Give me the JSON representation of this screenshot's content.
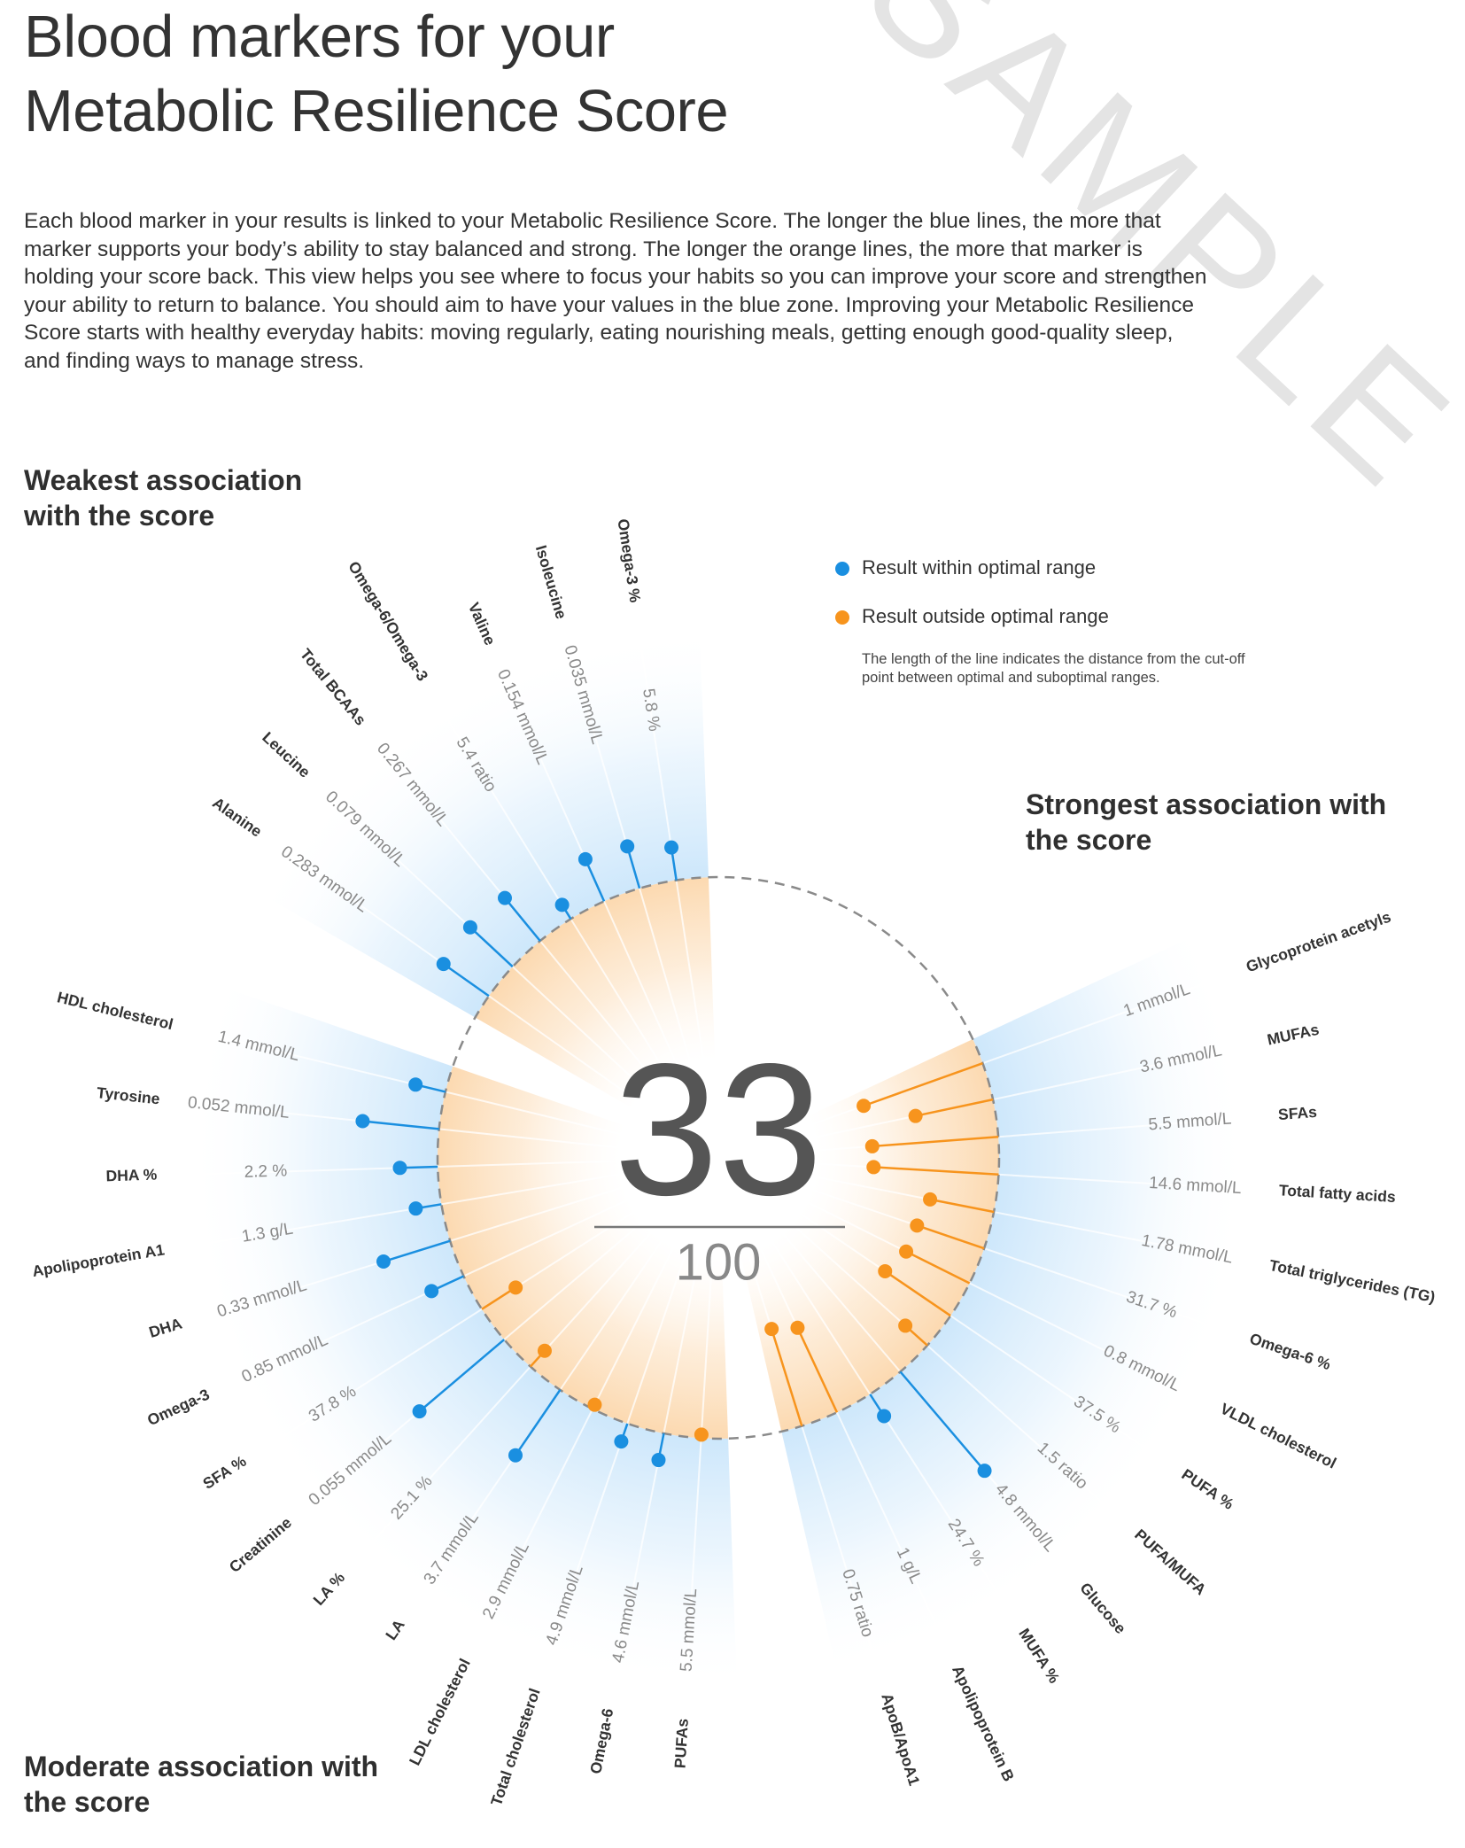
{
  "title": [
    "Blood markers for your",
    "Metabolic Resilience Score"
  ],
  "intro": "Each blood marker in your results is linked to your Metabolic Resilience Score. The longer the blue lines, the more that marker supports your body’s ability to stay balanced and strong. The longer the orange lines, the more that marker is holding your score back. This view helps you see where to focus your habits so you can improve your score and strengthen your ability to return to balance. You should aim to have your values in the blue zone. Improving your Metabolic Resilience Score starts with healthy everyday habits: moving regularly, eating nourishing meals, getting enough  good-quality sleep, and finding ways to manage stress.",
  "watermark": "SAMPLE",
  "chart_data": {
    "type": "radial-lollipop",
    "score": 33,
    "score_max": 100,
    "series": [
      {
        "name": "Result within optimal range",
        "color": "#1a8fe0"
      },
      {
        "name": "Result outside optimal range",
        "color": "#f7941d"
      }
    ],
    "legend_note": "The length of the line indicates the distance from the cut-off point between optimal and suboptimal ranges.",
    "groups": [
      {
        "title": "Weakest association with the score",
        "markers": [
          {
            "name": "Omega-3 %",
            "value": "5.8 %",
            "distance": 28
          },
          {
            "name": "Isoleucine",
            "value": "0.035 mmol/L",
            "distance": 37
          },
          {
            "name": "Valine",
            "value": "0.154 mmol/L",
            "distance": 39
          },
          {
            "name": "Omega-6/Omega-3",
            "value": "5.4 ratio",
            "distance": 14
          },
          {
            "name": "Total BCAAs",
            "value": "0.267 mmol/L",
            "distance": 47
          },
          {
            "name": "Leucine",
            "value": "0.079 mmol/L",
            "distance": 49
          },
          {
            "name": "Alanine",
            "value": "0.283 mmol/L",
            "distance": 47
          }
        ]
      },
      {
        "title": "Moderate association with the score",
        "markers": [
          {
            "name": "HDL cholesterol",
            "value": "1.4 mmol/L",
            "distance": 26
          },
          {
            "name": "Tyrosine",
            "value": "0.052 mmol/L",
            "distance": 65
          },
          {
            "name": "DHA %",
            "value": "2.2 %",
            "distance": 32
          },
          {
            "name": "Apolipoprotein A1",
            "value": "1.3 g/L",
            "distance": 22
          },
          {
            "name": "DHA",
            "value": "0.33 mmol/L",
            "distance": 59
          },
          {
            "name": "Omega-3",
            "value": "0.85 mmol/L",
            "distance": 30
          },
          {
            "name": "SFA %",
            "value": "37.8 %",
            "distance": -34
          },
          {
            "name": "Creatinine",
            "value": "0.055 mmol/L",
            "distance": 94
          },
          {
            "name": "LA %",
            "value": "25.1 %",
            "distance": -18
          },
          {
            "name": "LA",
            "value": "3.7 mmol/L",
            "distance": 67
          },
          {
            "name": "LDL cholesterol",
            "value": "2.9 mmol/L",
            "distance": -4
          },
          {
            "name": "Total cholesterol",
            "value": "4.9 mmol/L",
            "distance": 16
          },
          {
            "name": "Omega-6",
            "value": "4.6 mmol/L",
            "distance": 23
          },
          {
            "name": "PUFAs",
            "value": "5.5 mmol/L",
            "distance": -3
          }
        ]
      },
      {
        "title": "Strongest association with the score",
        "markers": [
          {
            "name": "Glycoprotein acetyls",
            "value": "1 mmol/L",
            "distance": -107
          },
          {
            "name": "MUFAs",
            "value": "3.6 mmol/L",
            "distance": -67
          },
          {
            "name": "SFAs",
            "value": "5.5 mmol/L",
            "distance": -107
          },
          {
            "name": "Total fatty acids",
            "value": "14.6 mmol/L",
            "distance": -106
          },
          {
            "name": "Total triglycerides (TG)",
            "value": "1.78 mmol/L",
            "distance": -55
          },
          {
            "name": "Omega-6 %",
            "value": "31.7 %",
            "distance": -60
          },
          {
            "name": "VLDL cholesterol",
            "value": "0.8 mmol/L",
            "distance": -60
          },
          {
            "name": "PUFA %",
            "value": "37.5 %",
            "distance": -67
          },
          {
            "name": "PUFA/MUFA",
            "value": "1.5 ratio",
            "distance": -25
          },
          {
            "name": "Glucose",
            "value": "4.8 mmol/L",
            "distance": 110
          },
          {
            "name": "MUFA %",
            "value": "24.7 %",
            "distance": 22
          },
          {
            "name": "Apolipoprotein B",
            "value": "1 g/L",
            "distance": -79
          },
          {
            "name": "ApoB/ApoA1",
            "value": "0.75 ratio",
            "distance": -86
          }
        ]
      }
    ]
  }
}
